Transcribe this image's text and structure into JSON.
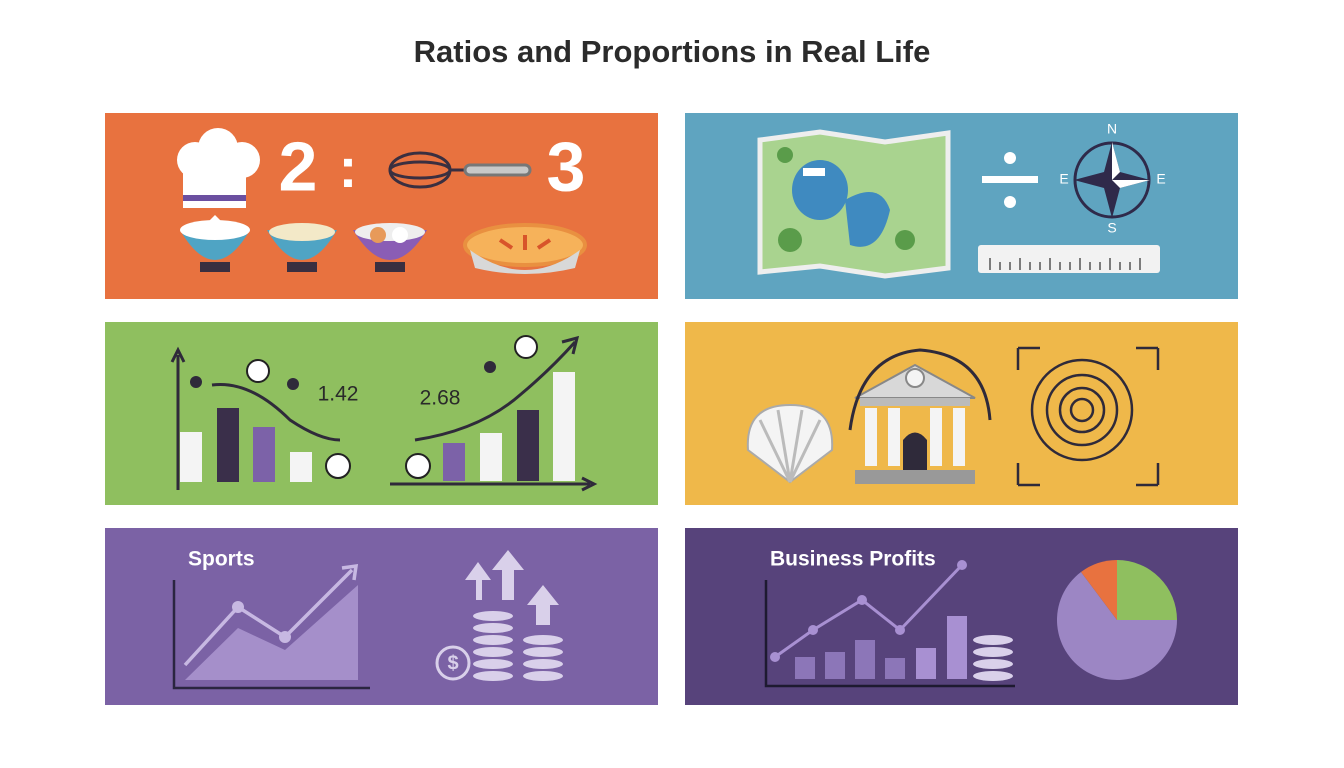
{
  "title": "Ratios and Proportions in Real Life",
  "cooking": {
    "ratio_left": "2",
    "separator": ":",
    "ratio_right": "3"
  },
  "maps": {
    "north": "N",
    "west": "E",
    "east": "E",
    "south": "S"
  },
  "speed": {
    "label_left": "1.42",
    "label_right": "2.68"
  },
  "sports": {
    "label": "Sports",
    "currency": "$"
  },
  "business": {
    "label": "Business Profits"
  }
}
